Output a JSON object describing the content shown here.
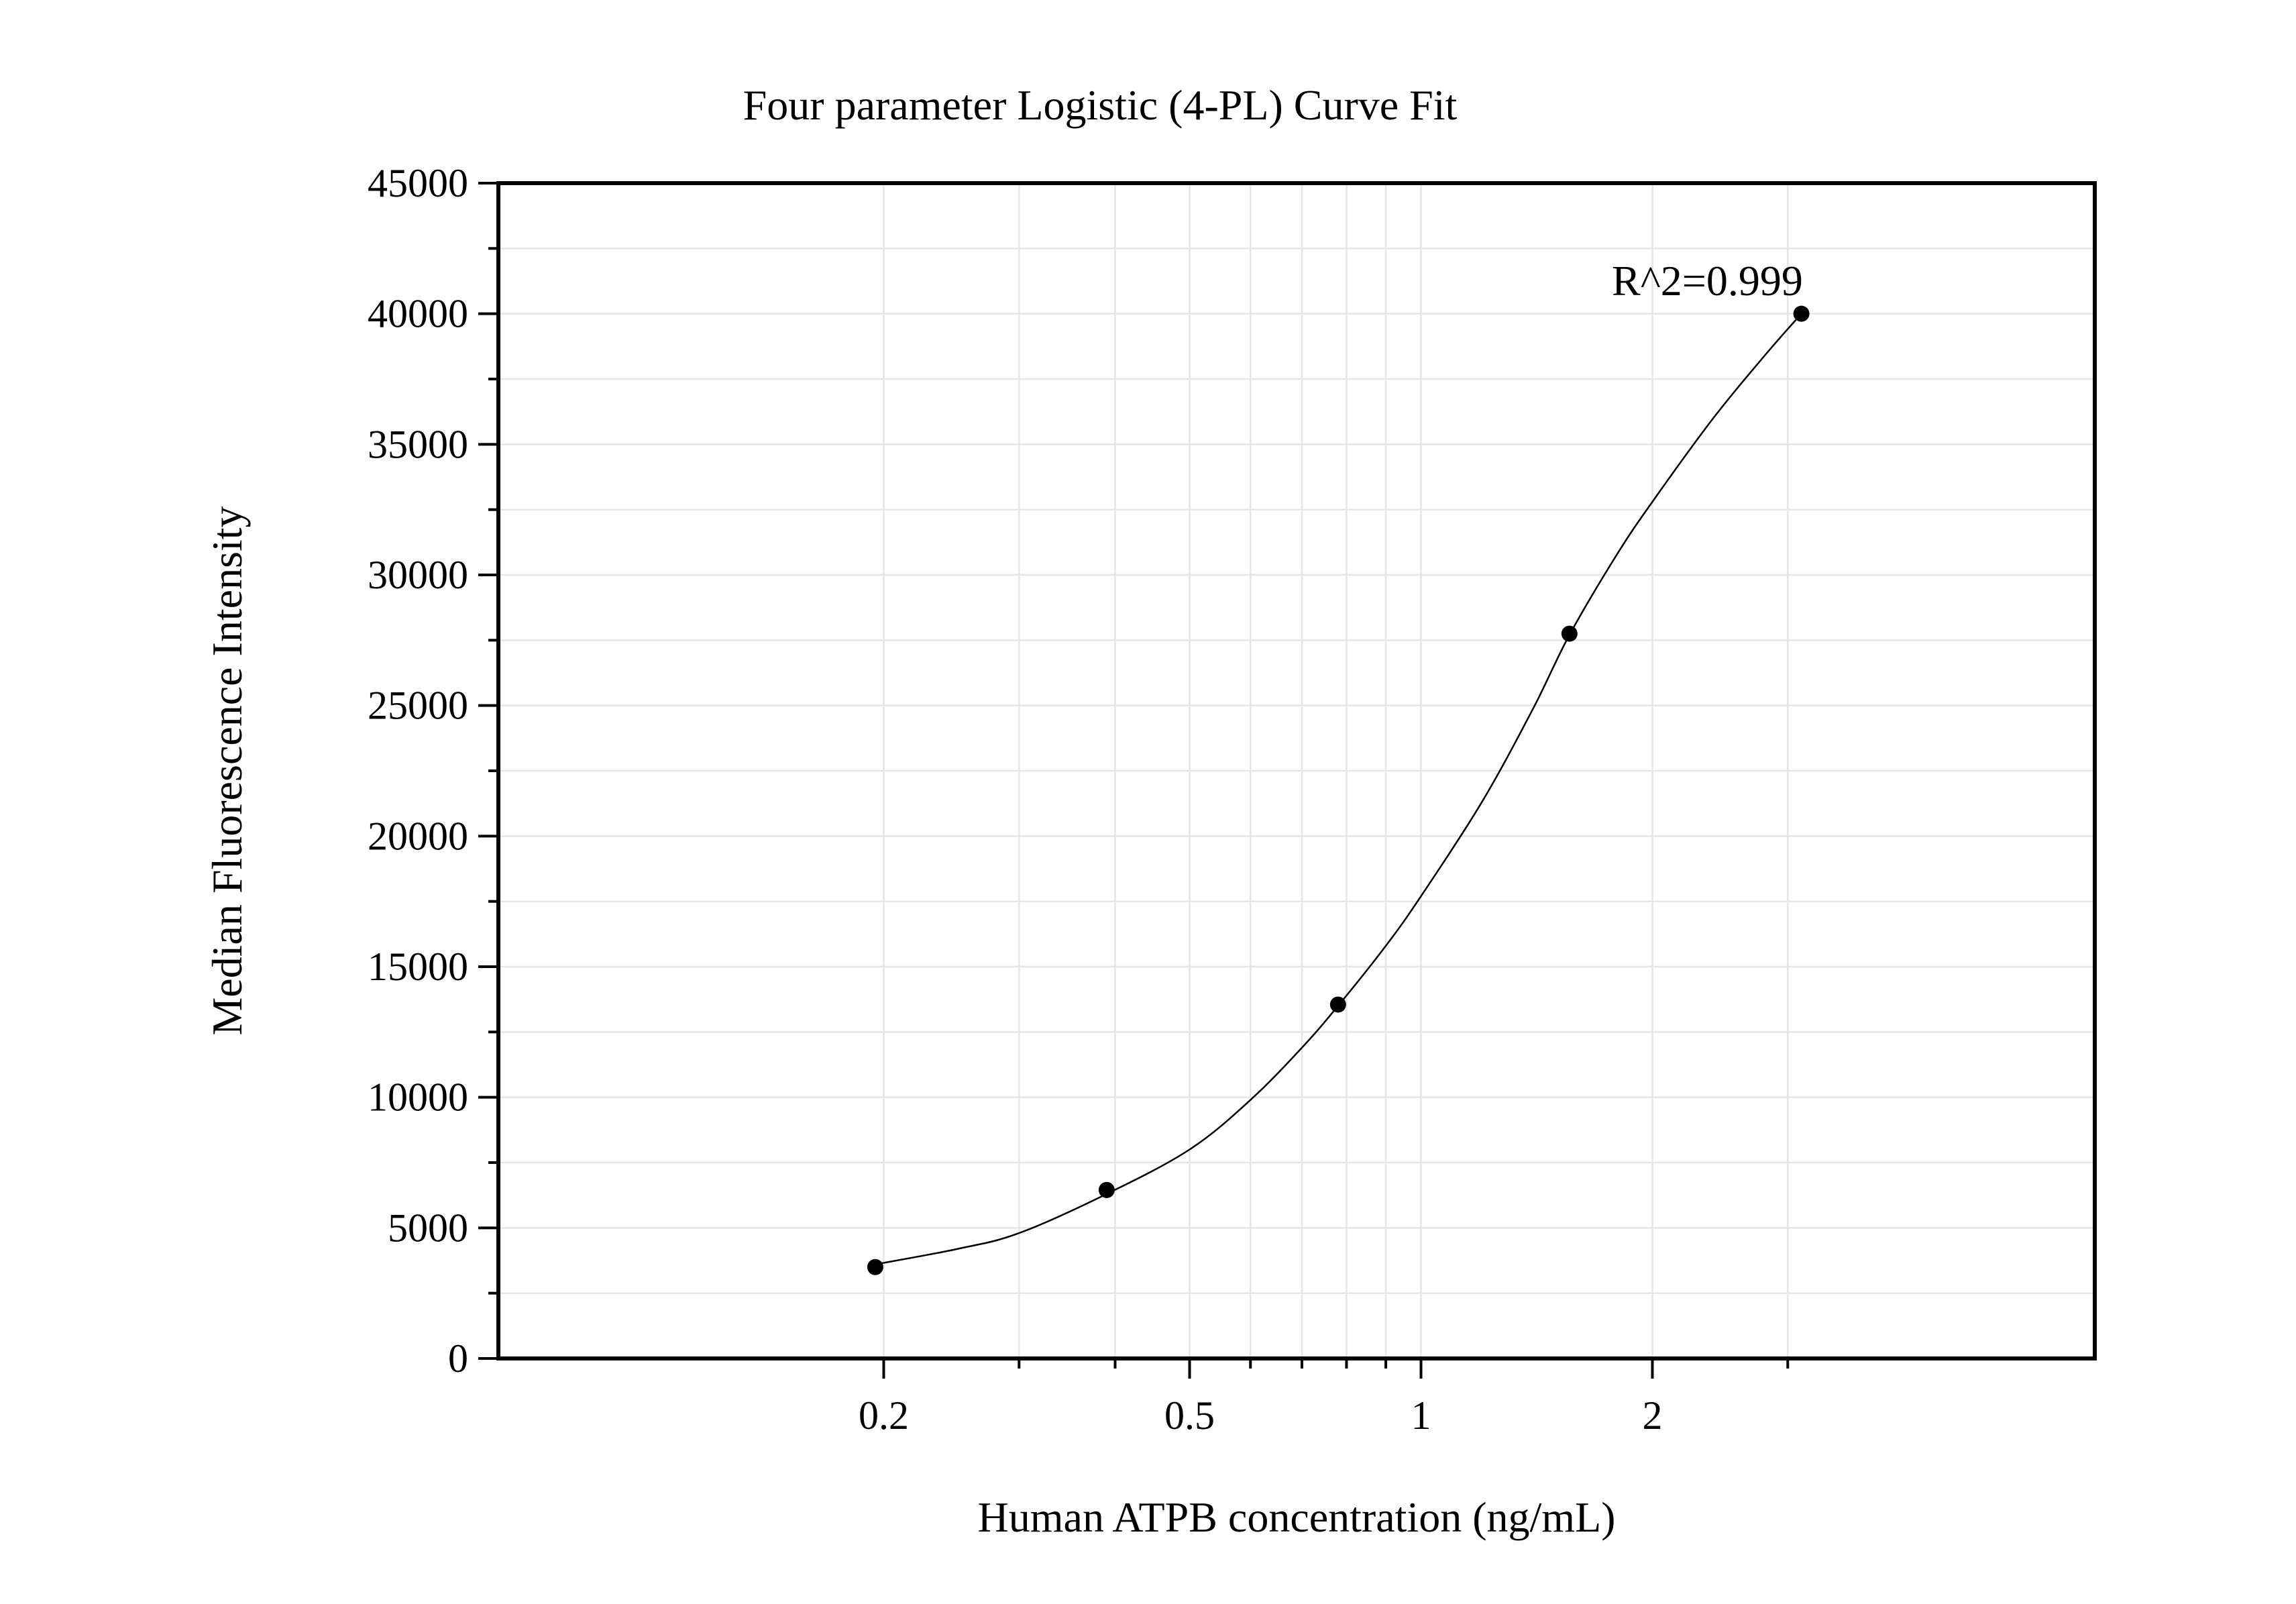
{
  "chart_data": {
    "type": "scatter",
    "title": "Four parameter Logistic (4-PL) Curve Fit",
    "xlabel": "Human ATPB concentration (ng/mL)",
    "ylabel": "Median Fluorescence Intensity",
    "x_scale": "log",
    "x_ticks": [
      0.2,
      0.5,
      1,
      2
    ],
    "x_tick_labels": [
      "0.2",
      "0.5",
      "1",
      "2"
    ],
    "xlim": [
      0.13,
      3.9
    ],
    "y_ticks": [
      0,
      5000,
      10000,
      15000,
      20000,
      25000,
      30000,
      35000,
      40000,
      45000
    ],
    "y_tick_labels": [
      "0",
      "5000",
      "10000",
      "15000",
      "20000",
      "25000",
      "30000",
      "35000",
      "40000",
      "45000"
    ],
    "ylim": [
      0,
      45000
    ],
    "grid": true,
    "series": [
      {
        "points": [
          {
            "x": 0.195,
            "y": 3500
          },
          {
            "x": 0.39,
            "y": 6450
          },
          {
            "x": 0.78,
            "y": 13550
          },
          {
            "x": 1.56,
            "y": 27750
          },
          {
            "x": 3.125,
            "y": 40000
          }
        ]
      }
    ],
    "fit": {
      "model": "4-PL",
      "curve": [
        {
          "x": 0.195,
          "y": 3600
        },
        {
          "x": 0.25,
          "y": 4200
        },
        {
          "x": 0.3,
          "y": 4800
        },
        {
          "x": 0.39,
          "y": 6300
        },
        {
          "x": 0.5,
          "y": 8000
        },
        {
          "x": 0.6,
          "y": 9900
        },
        {
          "x": 0.7,
          "y": 11900
        },
        {
          "x": 0.78,
          "y": 13500
        },
        {
          "x": 0.9,
          "y": 15800
        },
        {
          "x": 1.0,
          "y": 17700
        },
        {
          "x": 1.2,
          "y": 21300
        },
        {
          "x": 1.4,
          "y": 24900
        },
        {
          "x": 1.56,
          "y": 27700
        },
        {
          "x": 1.8,
          "y": 30800
        },
        {
          "x": 2.0,
          "y": 32800
        },
        {
          "x": 2.4,
          "y": 36000
        },
        {
          "x": 2.8,
          "y": 38400
        },
        {
          "x": 3.125,
          "y": 40000
        }
      ],
      "annotation": "R^2=0.999"
    }
  }
}
